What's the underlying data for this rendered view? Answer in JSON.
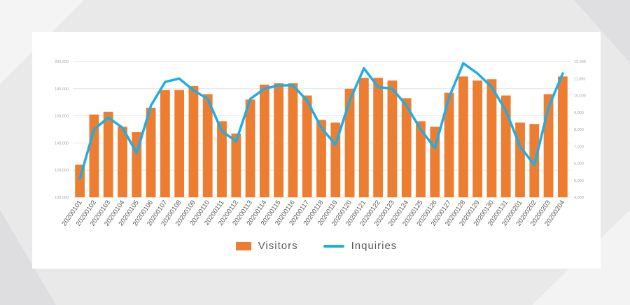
{
  "chart_data": {
    "type": "bar",
    "categories": [
      "20200101",
      "20200102",
      "20200103",
      "20200104",
      "20200105",
      "20200106",
      "20200107",
      "20200108",
      "20200109",
      "20200110",
      "20200111",
      "20200112",
      "20200113",
      "20200114",
      "20200115",
      "20200116",
      "20200117",
      "20200118",
      "20200119",
      "20200120",
      "20200121",
      "20200122",
      "20200123",
      "20200124",
      "20200125",
      "20200126",
      "20200127",
      "20200128",
      "20200129",
      "20200130",
      "20200131",
      "20200201",
      "20200202",
      "20200203",
      "20200204"
    ],
    "series": [
      {
        "name": "Visitors",
        "type": "bar",
        "axis": "left",
        "values": [
          124000,
          161000,
          163000,
          152000,
          148000,
          166000,
          179000,
          179000,
          182000,
          176000,
          156000,
          147000,
          172000,
          183000,
          184000,
          184000,
          175000,
          157000,
          155000,
          180000,
          188000,
          188000,
          186000,
          173000,
          156000,
          152000,
          177000,
          189000,
          186000,
          187000,
          175000,
          155000,
          154000,
          176000,
          189000
        ]
      },
      {
        "name": "Inquiries",
        "type": "line",
        "axis": "right",
        "values": [
          5100,
          8000,
          8700,
          8100,
          6600,
          9400,
          10800,
          11000,
          10300,
          9800,
          7900,
          7300,
          9800,
          10400,
          10600,
          10600,
          9700,
          8100,
          7100,
          9700,
          11600,
          10500,
          10400,
          9400,
          8000,
          6900,
          9900,
          11900,
          11300,
          10500,
          9100,
          7000,
          5900,
          9300,
          11300
        ]
      }
    ],
    "y_left": {
      "min": 100000,
      "max": 200000,
      "ticks": [
        "100,000",
        "120,000",
        "140,000",
        "160,000",
        "180,000",
        "200,000"
      ]
    },
    "y_right": {
      "min": 4000,
      "max": 12000,
      "ticks": [
        "4,000",
        "5,000",
        "6,000",
        "7,000",
        "8,000",
        "9,000",
        "10,000",
        "11,000",
        "12,000"
      ]
    },
    "grid": true,
    "legend_position": "bottom",
    "colors": {
      "Visitors": "#ed7d31",
      "Inquiries": "#1eaee4"
    }
  },
  "legend": {
    "visitors_label": "Visitors",
    "inquiries_label": "Inquiries"
  }
}
